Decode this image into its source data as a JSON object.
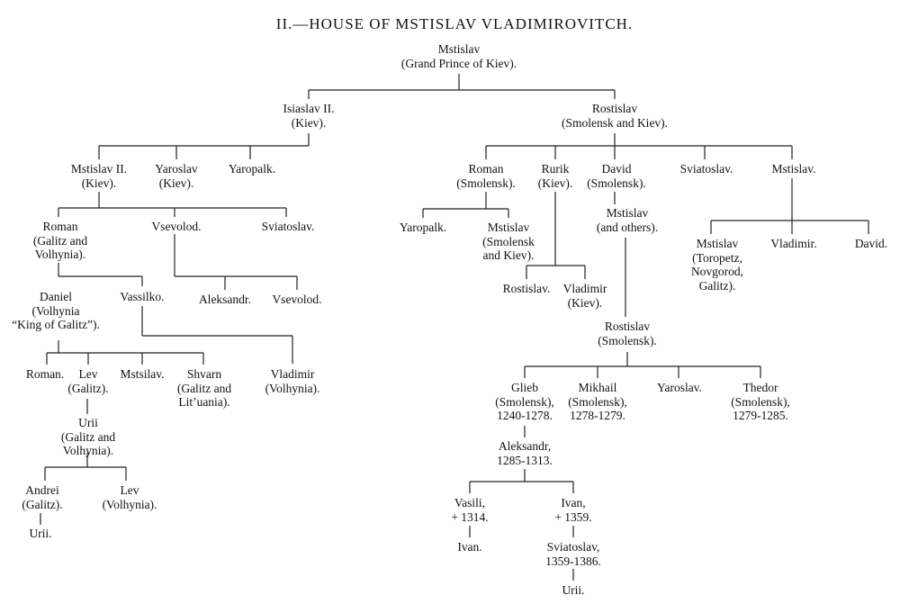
{
  "title": "II.—HOUSE OF MSTISLAV VLADIMIROVITCH.",
  "nodes": {
    "root": "Mstislav\n(Grand Prince of Kiev).",
    "isiaslav": "Isiaslav II.\n(Kiev).",
    "rostislav": "Rostislav\n(Smolensk and Kiev).",
    "mstislav2": "Mstislav II.\n(Kiev).",
    "yaroslav_kiev": "Yaroslav\n(Kiev).",
    "yaropalk_l": "Yaropalk.",
    "roman_galitz": "Roman\n(Galitz and\nVolhynia).",
    "vsevolod_l": "Vsevolod.",
    "sviatoslav_l": "Sviatoslav.",
    "daniel": "Daniel\n(Volhynia\n“King of Galitz”).",
    "vassilko": "Vassilko.",
    "aleksandr_l": "Aleksandr.",
    "vsevolod_l2": "Vsevolod.",
    "vladimir_volhynia": "Vladimir\n(Volhynia).",
    "roman_l2": "Roman.",
    "lev_galitz": "Lev\n(Galitz).",
    "mstsilav": "Mstsilav.",
    "shvarn": "Shvarn\n(Galitz and\nLit’uania).",
    "urii_gv": "Urii\n(Galitz and\nVolhynia).",
    "andrei": "Andrei\n(Galitz).",
    "lev_volhynia": "Lev\n(Volhynia).",
    "urii_l": "Urii.",
    "roman_smolensk": "Roman\n(Smolensk).",
    "rurik": "Rurik\n(Kiev).",
    "david_smolensk": "David\n(Smolensk).",
    "sviatoslav_r": "Sviatoslav.",
    "mstislav_r": "Mstislav.",
    "yaropalk_r": "Yaropalk.",
    "mstislav_sk": "Mstislav\n(Smolensk\nand Kiev).",
    "rostislav_r2": "Rostislav.",
    "vladimir_kiev": "Vladimir\n(Kiev).",
    "mstislav_others": "Mstislav\n(and others).",
    "mstislav_toropetz": "Mstislav\n(Toropetz,\nNovgorod,\nGalitz).",
    "vladimir_r": "Vladimir.",
    "david_r": "David.",
    "rostislav_smolensk": "Rostislav\n(Smolensk).",
    "glieb": "Glieb\n(Smolensk),\n1240-1278.",
    "mikhail": "Mikhail\n(Smolensk),\n1278-1279.",
    "yaroslav_r": "Yaroslav.",
    "thedor": "Thedor\n(Smolensk),\n1279-1285.",
    "aleksandr_r": "Aleksandr,\n1285-1313.",
    "vasili": "Vasili,\n+ 1314.",
    "ivan_1359": "Ivan,\n+ 1359.",
    "ivan_r": "Ivan.",
    "sviatoslav_1359": "Sviatoslav,\n1359-1386.",
    "urii_r": "Urii."
  }
}
